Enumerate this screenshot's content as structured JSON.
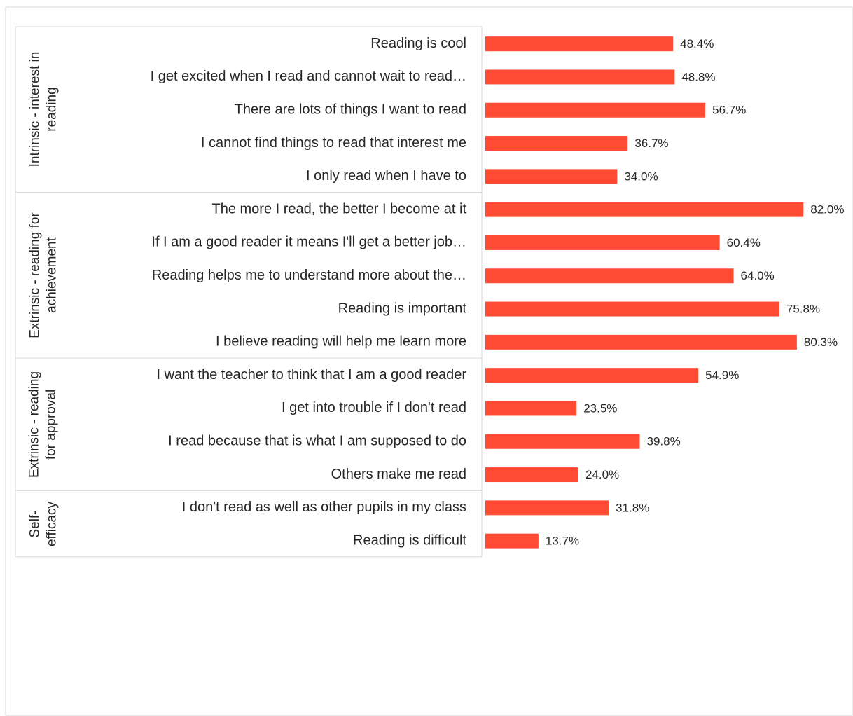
{
  "chart_data": {
    "type": "bar",
    "orientation": "horizontal",
    "color": "#ff4b33",
    "groups": [
      {
        "name": "Intrinsic - interest in reading",
        "categories": [
          "Reading is cool",
          "I get excited when I read and cannot wait to read…",
          "There are lots of things I want to read",
          "I cannot find things to read that interest me",
          "I only read when I have to"
        ],
        "values": [
          48.4,
          48.8,
          56.7,
          36.7,
          34.0
        ],
        "value_labels": [
          "48.4%",
          "48.8%",
          "56.7%",
          "36.7%",
          "34.0%"
        ]
      },
      {
        "name": "Extrinsic - reading for achievement",
        "categories": [
          "The more I read, the better I become at it",
          "If I am a good reader it means I'll get a better job…",
          "Reading helps me to understand more about the…",
          "Reading is important",
          "I believe reading will help me learn more"
        ],
        "values": [
          82.0,
          60.4,
          64.0,
          75.8,
          80.3
        ],
        "value_labels": [
          "82.0%",
          "60.4%",
          "64.0%",
          "75.8%",
          "80.3%"
        ]
      },
      {
        "name": "Extrinsic - reading for approval",
        "categories": [
          "I want the teacher to think that I am a good reader",
          "I get into trouble if I don't read",
          "I read because that is what I am supposed to do",
          "Others make me read"
        ],
        "values": [
          54.9,
          23.5,
          39.8,
          24.0
        ],
        "value_labels": [
          "54.9%",
          "23.5%",
          "39.8%",
          "24.0%"
        ]
      },
      {
        "name": "Self-efficacy",
        "categories": [
          "I don't read as well as other pupils in my class",
          "Reading is difficult"
        ],
        "values": [
          31.8,
          13.7
        ],
        "value_labels": [
          "31.8%",
          "13.7%"
        ]
      }
    ]
  }
}
